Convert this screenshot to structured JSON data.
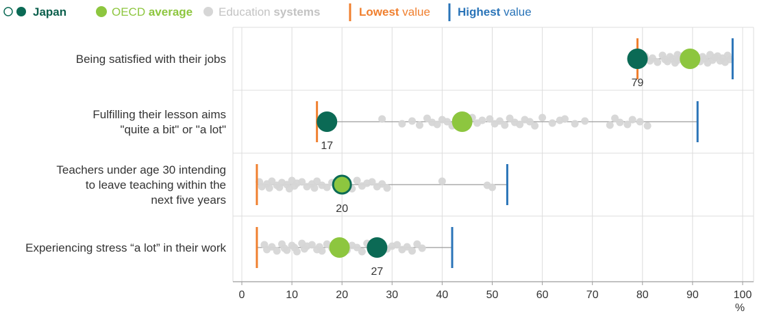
{
  "legend": {
    "japan": "Japan",
    "oecd_prefix": "OECD ",
    "oecd_bold": "average",
    "edu_prefix": "Education ",
    "edu_bold": "systems",
    "lowest_bold": "Lowest",
    "lowest_suffix": " value",
    "highest_bold": "Highest",
    "highest_suffix": " value"
  },
  "colors": {
    "japan": "#0b6a55",
    "oecd": "#8dc63f",
    "systems": "#d6d6d6",
    "lowest": "#f07f2e",
    "highest": "#2a74b8",
    "japan_legend_text": "#0b5f4c",
    "edu_legend_text": "#c3c3c3",
    "grid": "#dcdcdc",
    "range_line": "#9a9a9a"
  },
  "chart_data": {
    "type": "scatter",
    "xlabel": "%",
    "xlim": [
      0,
      100
    ],
    "xticks": [
      0,
      10,
      20,
      30,
      40,
      50,
      60,
      70,
      80,
      90,
      100
    ],
    "rows": [
      {
        "label_lines": [
          "Being satisfied with their jobs"
        ],
        "japan": 79,
        "oecd": 89.5,
        "lowest": 79,
        "highest": 98,
        "japan_label": "79",
        "japan_hollow": false,
        "systems": [
          80.5,
          81.5,
          82,
          83,
          84,
          84.5,
          85,
          85.5,
          86,
          86.5,
          87,
          87,
          87.5,
          88,
          88.5,
          89,
          90,
          90.5,
          91,
          91.5,
          92,
          92.5,
          93,
          93.5,
          94,
          94.5,
          95,
          95.5,
          96,
          96.5,
          97,
          97.5
        ]
      },
      {
        "label_lines": [
          "Fulfilling their lesson aims",
          "\"quite a bit\" or \"a lot\""
        ],
        "japan": 17,
        "oecd": 44,
        "lowest": 15,
        "highest": 91,
        "japan_label": "17",
        "japan_hollow": false,
        "systems": [
          28,
          32,
          34,
          35.5,
          37,
          38,
          39,
          40,
          41,
          42,
          46,
          47,
          48,
          49.5,
          50.5,
          51.5,
          52.5,
          53.5,
          54.5,
          55.5,
          56.5,
          57.5,
          58.5,
          60,
          62,
          63.5,
          64.5,
          66.5,
          68.5,
          73.5,
          74.5,
          75.5,
          77,
          78,
          79.5,
          81
        ]
      },
      {
        "label_lines": [
          "Teachers under age 30 intending",
          "to leave teaching within the",
          "next five years"
        ],
        "japan": 20,
        "oecd": 20,
        "lowest": 3,
        "highest": 53,
        "japan_label": "20",
        "japan_hollow": true,
        "systems": [
          3.5,
          4,
          5,
          5.5,
          6,
          7,
          7.5,
          8,
          9,
          9.5,
          10,
          10.5,
          11,
          12,
          13,
          14,
          14.5,
          15,
          16,
          17,
          18,
          19,
          22,
          23,
          24,
          25,
          26,
          27,
          28,
          29,
          40,
          49,
          50
        ]
      },
      {
        "label_lines": [
          "Experiencing stress “a lot” in their work"
        ],
        "japan": 27,
        "oecd": 19.5,
        "lowest": 3,
        "highest": 42,
        "japan_label": "27",
        "japan_hollow": false,
        "systems": [
          4.5,
          5,
          6,
          7,
          8,
          8.5,
          9,
          10,
          10.5,
          11,
          12,
          12.5,
          13,
          14,
          15,
          15.5,
          16,
          17,
          18,
          21,
          22,
          23,
          24,
          25,
          29,
          30,
          31,
          32,
          33,
          34,
          35,
          36
        ]
      }
    ]
  }
}
